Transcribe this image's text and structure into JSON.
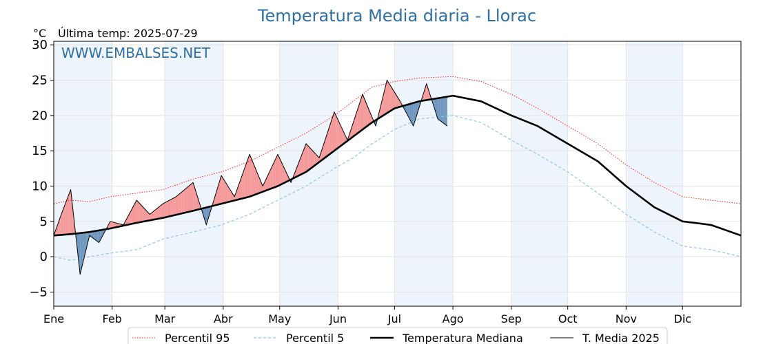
{
  "chart_data": {
    "type": "line",
    "title": "Temperatura Media diaria - Llorac",
    "unit_label": "°C",
    "subtitle": "Última temp: 2025-07-29",
    "watermark": "WWW.EMBALSES.NET",
    "x_ticks": [
      "Ene",
      "Feb",
      "Mar",
      "Abr",
      "May",
      "Jun",
      "Jul",
      "Ago",
      "Sep",
      "Oct",
      "Nov",
      "Dic"
    ],
    "x_tick_days": [
      1,
      32,
      60,
      91,
      121,
      152,
      182,
      213,
      244,
      274,
      305,
      335
    ],
    "x_range": [
      1,
      366
    ],
    "ylim": [
      -7,
      30.5
    ],
    "y_ticks": [
      -5,
      0,
      5,
      10,
      15,
      20,
      25,
      30
    ],
    "grid": true,
    "legend_position": "bottom-center",
    "colors": {
      "p95": "#ff2020",
      "p5": "#8fc8de",
      "median": "#000000",
      "media2025": "#000000",
      "above_fill": "#f49a9a",
      "below_fill": "#6f97bf",
      "title": "#2f6fa3",
      "band": "#eef4fb"
    },
    "series": [
      {
        "name": "Percentil 95",
        "style": "dotted",
        "x": [
          1,
          10,
          20,
          31,
          45,
          59,
          75,
          90,
          105,
          120,
          135,
          150,
          160,
          170,
          182,
          195,
          213,
          228,
          244,
          258,
          274,
          290,
          305,
          320,
          335,
          350,
          366
        ],
        "values": [
          7.5,
          8,
          7.8,
          8.5,
          9,
          9.5,
          11,
          12,
          13.5,
          15.5,
          17.5,
          20,
          22,
          24,
          24.8,
          25.3,
          25.5,
          24.8,
          23,
          21,
          18.5,
          16,
          13,
          10.5,
          8.5,
          8,
          7.5
        ]
      },
      {
        "name": "Percentil 5",
        "style": "dashed",
        "x": [
          1,
          10,
          20,
          31,
          45,
          59,
          75,
          90,
          105,
          120,
          135,
          150,
          160,
          170,
          182,
          195,
          213,
          228,
          244,
          258,
          274,
          290,
          305,
          320,
          335,
          350,
          366
        ],
        "values": [
          0,
          -0.5,
          0,
          0.5,
          1,
          2.5,
          3.5,
          4.5,
          6,
          8,
          10,
          12.5,
          14,
          16,
          18,
          19.5,
          20,
          19,
          16.5,
          14.5,
          12,
          9,
          6,
          3.5,
          1.5,
          1,
          0
        ]
      },
      {
        "name": "Temperatura Mediana",
        "style": "solid-thick",
        "x": [
          1,
          10,
          20,
          31,
          45,
          59,
          75,
          90,
          105,
          120,
          135,
          150,
          160,
          170,
          182,
          195,
          213,
          228,
          244,
          258,
          274,
          290,
          305,
          320,
          335,
          350,
          366
        ],
        "values": [
          3,
          3.2,
          3.5,
          4,
          4.8,
          5.5,
          6.5,
          7.5,
          8.5,
          10,
          12,
          15,
          17,
          19,
          21,
          22,
          22.8,
          22,
          20,
          18.5,
          16,
          13.5,
          10,
          7,
          5,
          4.5,
          3
        ]
      },
      {
        "name": "T. Media 2025",
        "style": "solid-thin",
        "x": [
          1,
          5,
          10,
          15,
          20,
          25,
          31,
          38,
          45,
          52,
          59,
          66,
          75,
          82,
          90,
          97,
          105,
          112,
          120,
          127,
          135,
          142,
          150,
          157,
          165,
          172,
          178,
          185,
          192,
          199,
          205,
          210
        ],
        "values": [
          3,
          6,
          9.5,
          -2.5,
          3,
          2,
          5,
          4.5,
          8,
          6,
          7.5,
          8.5,
          10.5,
          4.5,
          11.5,
          8.5,
          14.5,
          10,
          14.5,
          10.5,
          16,
          14,
          20.5,
          16.5,
          23,
          18.5,
          25,
          22,
          18.5,
          24.5,
          19.5,
          18.5
        ]
      }
    ]
  }
}
